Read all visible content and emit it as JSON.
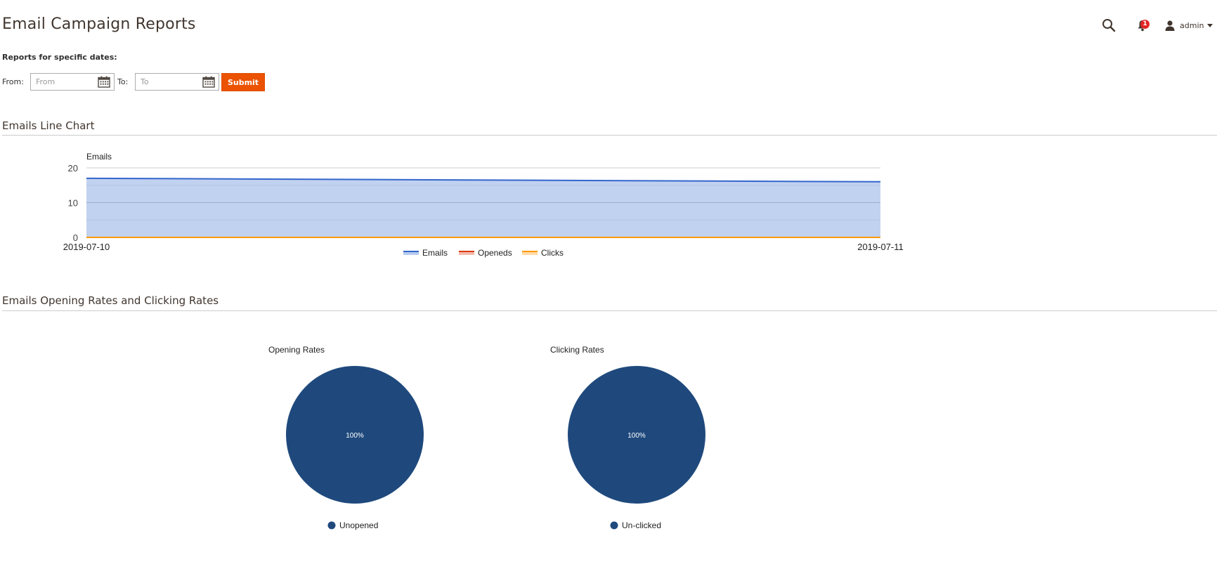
{
  "page": {
    "title": "Email Campaign Reports"
  },
  "header": {
    "notifications_count": "1",
    "user_name": "admin"
  },
  "filters": {
    "heading": "Reports for specific dates:",
    "from_label": "From:",
    "from_placeholder": "From",
    "from_value": "",
    "to_label": "To:",
    "to_placeholder": "To",
    "to_value": "",
    "submit_label": "Submit"
  },
  "sections": {
    "line_chart_title": "Emails Line Chart",
    "rates_title": "Emails Opening Rates and Clicking Rates"
  },
  "colors": {
    "accent": "#eb5202",
    "emails": "#3366cc",
    "emails_fill": "#c2d2ef",
    "openeds": "#dc3912",
    "clicks": "#ff9900",
    "pie": "#1f497d"
  },
  "chart_data": [
    {
      "type": "area",
      "title": "",
      "ylabel": "Emails",
      "xlabel": "",
      "x": [
        "2019-07-10",
        "2019-07-11"
      ],
      "ylim": [
        0,
        20
      ],
      "yticks": [
        0,
        10,
        20
      ],
      "grid": true,
      "legend": "bottom",
      "series": [
        {
          "name": "Emails",
          "color": "#3366cc",
          "values": [
            17,
            16
          ]
        },
        {
          "name": "Openeds",
          "color": "#dc3912",
          "values": [
            0,
            0
          ]
        },
        {
          "name": "Clicks",
          "color": "#ff9900",
          "values": [
            0,
            0
          ]
        }
      ]
    },
    {
      "type": "pie",
      "title": "Opening Rates",
      "slices": [
        {
          "label": "Unopened",
          "value": 100,
          "color": "#1f497d",
          "display": "100%"
        }
      ],
      "legend": "bottom"
    },
    {
      "type": "pie",
      "title": "Clicking Rates",
      "slices": [
        {
          "label": "Un-clicked",
          "value": 100,
          "color": "#1f497d",
          "display": "100%"
        }
      ],
      "legend": "bottom"
    }
  ]
}
